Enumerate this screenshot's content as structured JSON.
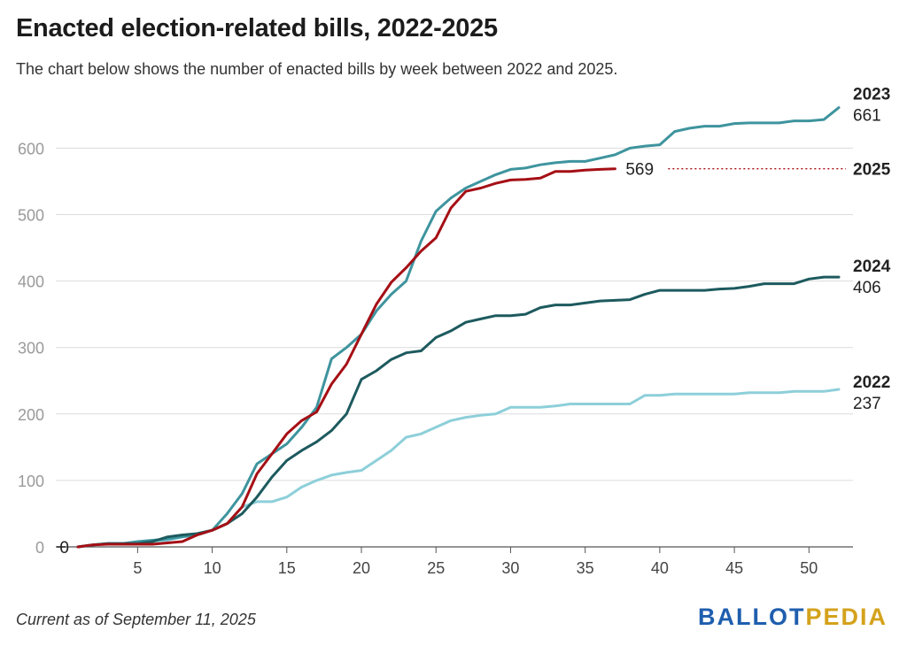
{
  "title": "Enacted election-related bills, 2022-2025",
  "subtitle": "The chart below shows the number of enacted bills by week between 2022 and 2025.",
  "footnote": "Current as of September 11, 2025",
  "brand": {
    "part1": "BALLOT",
    "part2": "PEDIA"
  },
  "chart_data": {
    "type": "line",
    "xlim": [
      1,
      52
    ],
    "ylim": [
      0,
      661
    ],
    "x_ticks": [
      5,
      10,
      15,
      20,
      25,
      30,
      35,
      40,
      45,
      50
    ],
    "y_ticks": [
      0,
      100,
      200,
      300,
      400,
      500,
      600
    ],
    "grid": true,
    "series": [
      {
        "name": "2022",
        "end_label": "237",
        "color": "#8dcfd9",
        "values": [
          0,
          3,
          5,
          5,
          7,
          8,
          10,
          15,
          20,
          25,
          35,
          60,
          68,
          68,
          75,
          90,
          100,
          108,
          112,
          115,
          130,
          145,
          165,
          170,
          180,
          190,
          195,
          198,
          200,
          210,
          210,
          210,
          212,
          215,
          215,
          215,
          215,
          215,
          228,
          228,
          230,
          230,
          230,
          230,
          230,
          232,
          232,
          232,
          234,
          234,
          234,
          237
        ]
      },
      {
        "name": "2023",
        "end_label": "661",
        "color": "#3e949e",
        "values": [
          0,
          3,
          5,
          5,
          8,
          10,
          12,
          15,
          18,
          25,
          50,
          80,
          125,
          140,
          155,
          180,
          210,
          283,
          300,
          320,
          355,
          380,
          400,
          460,
          505,
          525,
          540,
          550,
          560,
          568,
          570,
          575,
          578,
          580,
          580,
          585,
          590,
          600,
          603,
          605,
          625,
          630,
          633,
          633,
          637,
          638,
          638,
          638,
          641,
          641,
          643,
          661
        ]
      },
      {
        "name": "2024",
        "end_label": "406",
        "color": "#1d5a5e",
        "values": [
          0,
          3,
          5,
          5,
          5,
          8,
          15,
          18,
          20,
          25,
          35,
          50,
          75,
          105,
          130,
          145,
          158,
          175,
          200,
          252,
          265,
          282,
          292,
          295,
          315,
          325,
          338,
          343,
          348,
          348,
          350,
          360,
          364,
          364,
          367,
          370,
          371,
          372,
          380,
          386,
          386,
          386,
          386,
          388,
          389,
          392,
          396,
          396,
          396,
          403,
          406,
          406
        ]
      },
      {
        "name": "2025",
        "end_label": "569",
        "color": "#a50f15",
        "values": [
          0,
          3,
          4,
          4,
          4,
          4,
          6,
          8,
          18,
          25,
          35,
          60,
          110,
          140,
          170,
          190,
          203,
          245,
          275,
          320,
          365,
          398,
          420,
          445,
          465,
          510,
          535,
          540,
          547,
          552,
          553,
          555,
          565,
          565,
          567,
          568,
          569
        ]
      }
    ],
    "annotations": [
      {
        "text": "0",
        "x": 1,
        "y": 0
      }
    ]
  }
}
